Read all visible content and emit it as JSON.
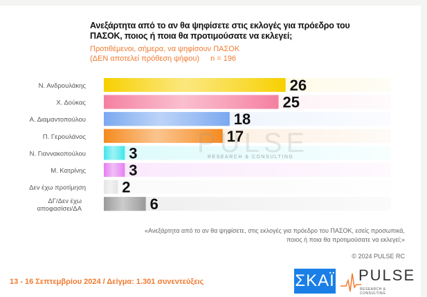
{
  "title": "Ανεξάρτητα από το αν θα ψηφίσετε στις εκλογές για πρόεδρο του ΠΑΣΟΚ, ποιος ή ποια θα προτιμούσατε να εκλεγεί;",
  "subtitle_line1": "Προτιθέμενοι, σήμερα, να ψηφίσουν ΠΑΣΟΚ",
  "subtitle_line2": "(ΔΕΝ αποτελεί πρόθεση ψήφου)",
  "sample_n": "n = 196",
  "watermark": "PULSE",
  "watermark_sub": "RESEARCH & CONSULTING",
  "quote_line1": "«Ανεξάρτητα από το αν θα ψηφίσετε, στις εκλογές για πρόεδρο του ΠΑΣΟΚ, εσείς προσωπικά,",
  "quote_line2": "ποιος ή ποια θα προτιμούσατε να εκλεγεί;»",
  "copyright": "© 2024 PULSE RC",
  "footer": "13 - 16 Σεπτεμβρίου 2024  /  Δείγμα:  1.301 συνεντεύξεις",
  "logos": {
    "skai": "ΣΚΑΪ",
    "pulse": "PULSE",
    "pulse_sub": "RESEARCH & CONSULTING",
    "skai_color": "#1a7fe6"
  },
  "chart_data": {
    "type": "bar",
    "orientation": "horizontal",
    "title": "Ανεξάρτητα από το αν θα ψηφίσετε στις εκλογές για πρόεδρο του ΠΑΣΟΚ, ποιος ή ποια θα προτιμούσατε να εκλεγεί;",
    "categories": [
      "Ν. Ανδρουλάκης",
      "Χ. Δούκας",
      "Α. Διαμαντοπούλου",
      "Π. Γερουλάνος",
      "Ν. Γιαννακοπούλου",
      "Μ. Κατρίνης",
      "Δεν έχω προτίμηση",
      "ΔΓ/Δεν έχω αποφασίσει/ΔΑ"
    ],
    "values": [
      26,
      25,
      18,
      17,
      3,
      3,
      2,
      6
    ],
    "colors": [
      "#f7d000",
      "#f57fa0",
      "#7aa8f0",
      "#f58a1e",
      "#3ee6ec",
      "#e47ef0",
      "#e4e4e4",
      "#999999"
    ],
    "grid": false,
    "legend": "none"
  }
}
